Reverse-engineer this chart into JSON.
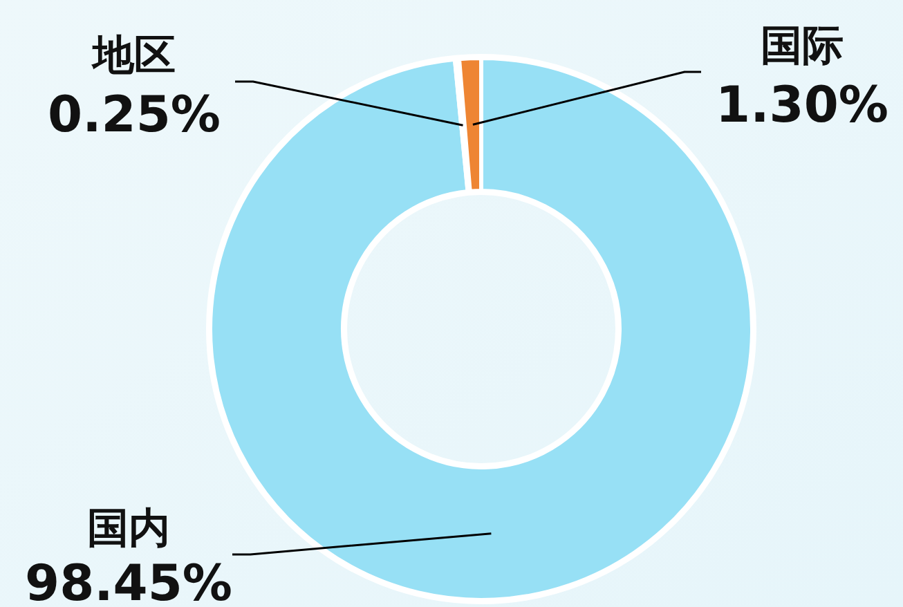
{
  "chart_data": {
    "type": "donut",
    "categories": [
      "国内",
      "地区",
      "国际"
    ],
    "values": [
      98.45,
      0.25,
      1.3
    ],
    "colors": [
      "#97e0f5",
      "#ffffff",
      "#ee8533"
    ],
    "value_labels": [
      "98.45%",
      "0.25%",
      "1.30%"
    ]
  }
}
